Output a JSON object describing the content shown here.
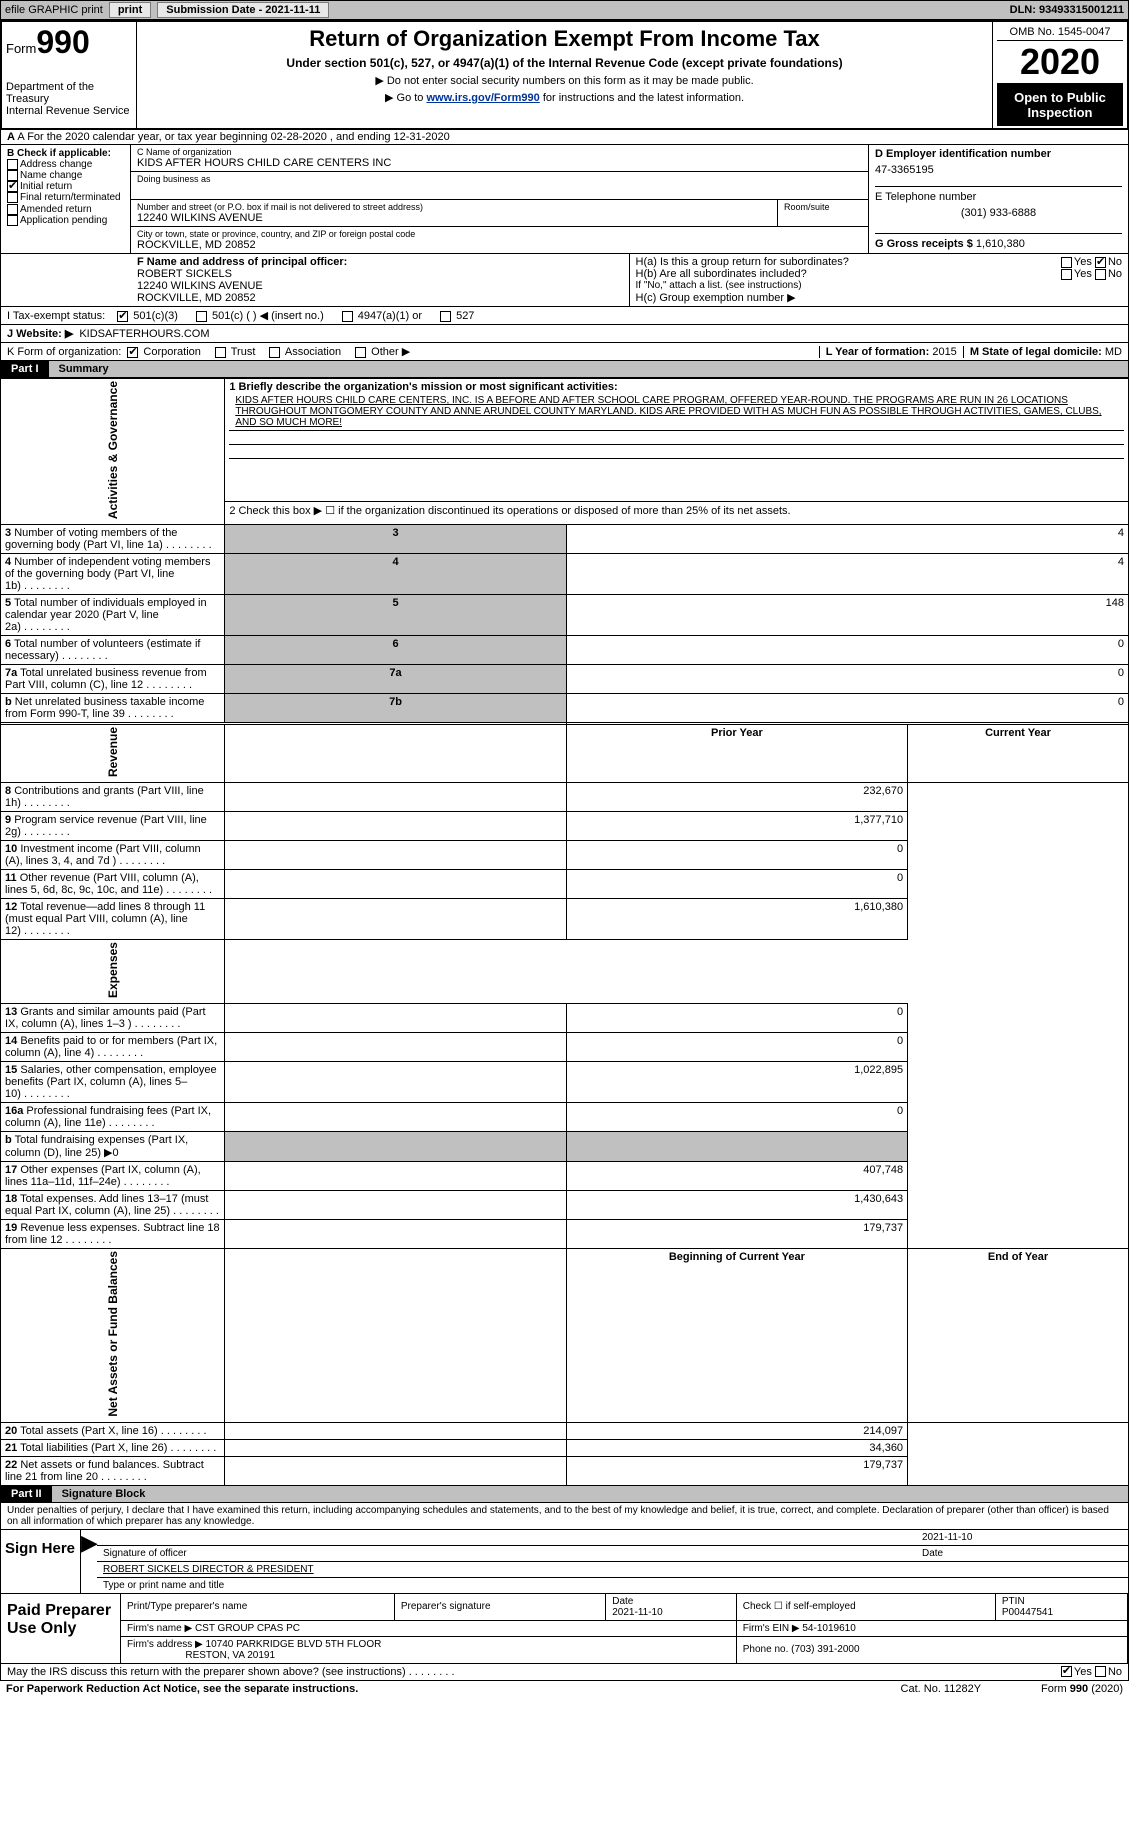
{
  "topbar": {
    "efile": "efile GRAPHIC print",
    "subdate_lbl": "Submission Date - ",
    "subdate": "2021-11-11",
    "dln_lbl": "DLN: ",
    "dln": "93493315001211"
  },
  "hdr": {
    "form_lbl": "Form",
    "form_no": "990",
    "dept": "Department of the Treasury",
    "irs": "Internal Revenue Service",
    "title": "Return of Organization Exempt From Income Tax",
    "subtitle": "Under section 501(c), 527, or 4947(a)(1) of the Internal Revenue Code (except private foundations)",
    "note1": "▶ Do not enter social security numbers on this form as it may be made public.",
    "note2_pre": "▶ Go to ",
    "note2_link": "www.irs.gov/Form990",
    "note2_post": " for instructions and the latest information.",
    "omb": "OMB No. 1545-0047",
    "year": "2020",
    "otp": "Open to Public Inspection"
  },
  "rowA": {
    "text": "A For the 2020 calendar year, or tax year beginning 02-28-2020   , and ending 12-31-2020"
  },
  "boxB": {
    "hdr": "B Check if applicable:",
    "opts": [
      "Address change",
      "Name change",
      "Initial return",
      "Final return/terminated",
      "Amended return",
      "Application pending"
    ],
    "checked_idx": 2
  },
  "boxC": {
    "name_lbl": "C Name of organization",
    "name": "KIDS AFTER HOURS CHILD CARE CENTERS INC",
    "dba_lbl": "Doing business as",
    "dba": "",
    "addr_lbl": "Number and street (or P.O. box if mail is not delivered to street address)",
    "room_lbl": "Room/suite",
    "addr": "12240 WILKINS AVENUE",
    "city_lbl": "City or town, state or province, country, and ZIP or foreign postal code",
    "city": "ROCKVILLE, MD  20852"
  },
  "boxD": {
    "ein_lbl": "D Employer identification number",
    "ein": "47-3365195",
    "tel_lbl": "E Telephone number",
    "tel": "(301) 933-6888",
    "gross_lbl": "G Gross receipts $ ",
    "gross": "1,610,380"
  },
  "boxF": {
    "lbl": "F Name and address of principal officer:",
    "name": "ROBERT SICKELS",
    "addr1": "12240 WILKINS AVENUE",
    "addr2": "ROCKVILLE, MD  20852"
  },
  "boxH": {
    "a": "H(a)  Is this a group return for subordinates?",
    "a_no": true,
    "b": "H(b)  Are all subordinates included?",
    "bnote": "If \"No,\" attach a list. (see instructions)",
    "c": "H(c)  Group exemption number ▶"
  },
  "rowI": {
    "lbl": "I  Tax-exempt status:",
    "opts": [
      "501(c)(3)",
      "501(c) (  ) ◀ (insert no.)",
      "4947(a)(1) or",
      "527"
    ],
    "checked_idx": 0
  },
  "rowJ": {
    "lbl": "J  Website: ▶",
    "val": "KIDSAFTERHOURS.COM"
  },
  "rowK": {
    "lbl": "K Form of organization:",
    "opts": [
      "Corporation",
      "Trust",
      "Association",
      "Other ▶"
    ],
    "checked_idx": 0
  },
  "rowL": {
    "yr_lbl": "L Year of formation: ",
    "yr": "2015",
    "st_lbl": "M State of legal domicile: ",
    "st": "MD"
  },
  "part1": {
    "hdr": "Part I",
    "title": "Summary"
  },
  "mission_lbl": "1  Briefly describe the organization's mission or most significant activities:",
  "mission": "KIDS AFTER HOURS CHILD CARE CENTERS, INC. IS A BEFORE AND AFTER SCHOOL CARE PROGRAM, OFFERED YEAR-ROUND. THE PROGRAMS ARE RUN IN 26 LOCATIONS THROUGHOUT MONTGOMERY COUNTY AND ANNE ARUNDEL COUNTY MARYLAND. KIDS ARE PROVIDED WITH AS MUCH FUN AS POSSIBLE THROUGH ACTIVITIES, GAMES, CLUBS, AND SO MUCH MORE!",
  "gov": {
    "side": "Activities & Governance",
    "l2": "2  Check this box ▶ ☐  if the organization discontinued its operations or disposed of more than 25% of its net assets.",
    "rows": [
      {
        "n": "3",
        "t": "Number of voting members of the governing body (Part VI, line 1a)",
        "k": "3",
        "v": "4"
      },
      {
        "n": "4",
        "t": "Number of independent voting members of the governing body (Part VI, line 1b)",
        "k": "4",
        "v": "4"
      },
      {
        "n": "5",
        "t": "Total number of individuals employed in calendar year 2020 (Part V, line 2a)",
        "k": "5",
        "v": "148"
      },
      {
        "n": "6",
        "t": "Total number of volunteers (estimate if necessary)",
        "k": "6",
        "v": "0"
      },
      {
        "n": "7a",
        "t": "Total unrelated business revenue from Part VIII, column (C), line 12",
        "k": "7a",
        "v": "0"
      },
      {
        "n": "b",
        "t": "Net unrelated business taxable income from Form 990-T, line 39",
        "k": "7b",
        "v": "0"
      }
    ]
  },
  "rev": {
    "side": "Revenue",
    "hdr_prev": "Prior Year",
    "hdr_cur": "Current Year",
    "rows": [
      {
        "n": "8",
        "t": "Contributions and grants (Part VIII, line 1h)",
        "cur": "232,670"
      },
      {
        "n": "9",
        "t": "Program service revenue (Part VIII, line 2g)",
        "cur": "1,377,710"
      },
      {
        "n": "10",
        "t": "Investment income (Part VIII, column (A), lines 3, 4, and 7d )",
        "cur": "0"
      },
      {
        "n": "11",
        "t": "Other revenue (Part VIII, column (A), lines 5, 6d, 8c, 9c, 10c, and 11e)",
        "cur": "0"
      },
      {
        "n": "12",
        "t": "Total revenue—add lines 8 through 11 (must equal Part VIII, column (A), line 12)",
        "cur": "1,610,380"
      }
    ]
  },
  "exp": {
    "side": "Expenses",
    "rows": [
      {
        "n": "13",
        "t": "Grants and similar amounts paid (Part IX, column (A), lines 1–3 )",
        "cur": "0"
      },
      {
        "n": "14",
        "t": "Benefits paid to or for members (Part IX, column (A), line 4)",
        "cur": "0"
      },
      {
        "n": "15",
        "t": "Salaries, other compensation, employee benefits (Part IX, column (A), lines 5–10)",
        "cur": "1,022,895"
      },
      {
        "n": "16a",
        "t": "Professional fundraising fees (Part IX, column (A), line 11e)",
        "cur": "0"
      },
      {
        "n": "b",
        "t": "Total fundraising expenses (Part IX, column (D), line 25) ▶0",
        "grey": true
      },
      {
        "n": "17",
        "t": "Other expenses (Part IX, column (A), lines 11a–11d, 11f–24e)",
        "cur": "407,748"
      },
      {
        "n": "18",
        "t": "Total expenses. Add lines 13–17 (must equal Part IX, column (A), line 25)",
        "cur": "1,430,643"
      },
      {
        "n": "19",
        "t": "Revenue less expenses. Subtract line 18 from line 12",
        "cur": "179,737"
      }
    ]
  },
  "bal": {
    "side": "Net Assets or Fund Balances",
    "hdr_prev": "Beginning of Current Year",
    "hdr_cur": "End of Year",
    "rows": [
      {
        "n": "20",
        "t": "Total assets (Part X, line 16)",
        "cur": "214,097"
      },
      {
        "n": "21",
        "t": "Total liabilities (Part X, line 26)",
        "cur": "34,360"
      },
      {
        "n": "22",
        "t": "Net assets or fund balances. Subtract line 21 from line 20",
        "cur": "179,737"
      }
    ]
  },
  "part2": {
    "hdr": "Part II",
    "title": "Signature Block"
  },
  "decl": "Under penalties of perjury, I declare that I have examined this return, including accompanying schedules and statements, and to the best of my knowledge and belief, it is true, correct, and complete. Declaration of preparer (other than officer) is based on all information of which preparer has any knowledge.",
  "sign": {
    "side": "Sign Here",
    "sig_lbl": "Signature of officer",
    "date_lbl": "Date",
    "date": "2021-11-10",
    "name": "ROBERT SICKELS  DIRECTOR & PRESIDENT",
    "name_lbl": "Type or print name and title"
  },
  "prep": {
    "side": "Paid Preparer Use Only",
    "h": [
      "Print/Type preparer's name",
      "Preparer's signature",
      "Date",
      "Check ☐ if self-employed",
      "PTIN"
    ],
    "date": "2021-11-10",
    "ptin": "P00447541",
    "firm_lbl": "Firm's name  ▶",
    "firm": "CST GROUP CPAS PC",
    "ein_lbl": "Firm's EIN ▶",
    "ein": "54-1019610",
    "addr_lbl": "Firm's address ▶",
    "addr1": "10740 PARKRIDGE BLVD 5TH FLOOR",
    "addr2": "RESTON, VA  20191",
    "phone_lbl": "Phone no. ",
    "phone": "(703) 391-2000"
  },
  "discuss": {
    "q": "May the IRS discuss this return with the preparer shown above? (see instructions)",
    "yes": true
  },
  "foot": {
    "l": "For Paperwork Reduction Act Notice, see the separate instructions.",
    "m": "Cat. No. 11282Y",
    "r": "Form 990 (2020)"
  }
}
